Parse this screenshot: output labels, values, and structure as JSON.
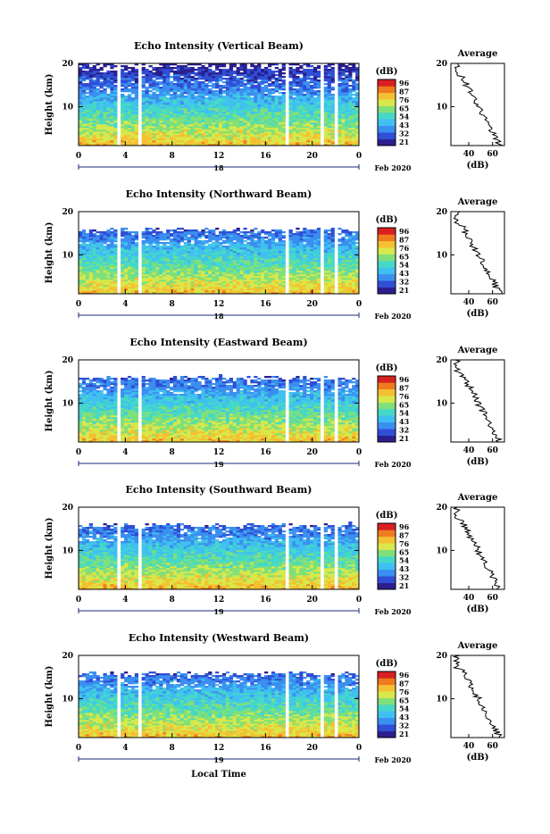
{
  "figure": {
    "xlabel": "Local Time",
    "date_suffix": "Feb 2020"
  },
  "colorbar": {
    "unit": "(dB)",
    "ticks": [
      "96",
      "87",
      "76",
      "65",
      "54",
      "43",
      "32",
      "21"
    ],
    "colors": [
      "#2b1f8f",
      "#2f4fd6",
      "#3b8ff0",
      "#3fc0f0",
      "#45d8c8",
      "#7fe07a",
      "#d8e84a",
      "#f5c030",
      "#f07a20",
      "#d82020"
    ]
  },
  "chart_data": [
    {
      "type": "heatmap",
      "title": "Echo Intensity (Vertical Beam)",
      "xlabel": "",
      "ylabel": "Height (km)",
      "x_ticks": [
        "0",
        "4",
        "8",
        "12",
        "16",
        "20",
        "0"
      ],
      "x_range": [
        0,
        24
      ],
      "y_range": [
        1,
        20
      ],
      "y_ticks": [
        "10",
        "20"
      ],
      "day_label": "18",
      "missing_hours": [
        [
          3.2,
          3.5
        ],
        [
          5.1,
          5.4
        ],
        [
          17.8,
          18.1
        ],
        [
          20.8,
          21.0
        ],
        [
          21.9,
          22.1
        ]
      ],
      "value_unit": "dB",
      "value_range": [
        21,
        96
      ],
      "profile": {
        "title": "Average",
        "xlabel": "(dB)",
        "x_ticks": [
          "40",
          "60"
        ],
        "x_range": [
          25,
          70
        ],
        "y_range": [
          1,
          20
        ],
        "y_ticks": [
          "10",
          "20"
        ]
      }
    },
    {
      "type": "heatmap",
      "title": "Echo Intensity (Northward Beam)",
      "xlabel": "",
      "ylabel": "Height (km)",
      "x_ticks": [
        "0",
        "4",
        "8",
        "12",
        "16",
        "20",
        "0"
      ],
      "x_range": [
        0,
        24
      ],
      "y_range": [
        1,
        20
      ],
      "y_ticks": [
        "10",
        "20"
      ],
      "day_label": "18",
      "missing_hours": [
        [
          3.2,
          3.5
        ],
        [
          5.1,
          5.4
        ],
        [
          17.8,
          18.1
        ],
        [
          20.8,
          21.0
        ],
        [
          21.9,
          22.1
        ]
      ],
      "value_unit": "dB",
      "value_range": [
        21,
        96
      ],
      "profile": {
        "title": "Average",
        "xlabel": "(dB)",
        "x_ticks": [
          "40",
          "60"
        ],
        "x_range": [
          25,
          70
        ],
        "y_range": [
          1,
          20
        ],
        "y_ticks": [
          "10",
          "20"
        ]
      }
    },
    {
      "type": "heatmap",
      "title": "Echo Intensity (Eastward Beam)",
      "xlabel": "",
      "ylabel": "Height (km)",
      "x_ticks": [
        "0",
        "4",
        "8",
        "12",
        "16",
        "20",
        "0"
      ],
      "x_range": [
        0,
        24
      ],
      "y_range": [
        1,
        20
      ],
      "y_ticks": [
        "10",
        "20"
      ],
      "day_label": "19",
      "missing_hours": [
        [
          3.2,
          3.5
        ],
        [
          5.1,
          5.4
        ],
        [
          17.8,
          18.1
        ],
        [
          20.8,
          21.0
        ],
        [
          21.9,
          22.1
        ]
      ],
      "value_unit": "dB",
      "value_range": [
        21,
        96
      ],
      "profile": {
        "title": "Average",
        "xlabel": "(dB)",
        "x_ticks": [
          "40",
          "60"
        ],
        "x_range": [
          25,
          70
        ],
        "y_range": [
          1,
          20
        ],
        "y_ticks": [
          "10",
          "20"
        ]
      }
    },
    {
      "type": "heatmap",
      "title": "Echo Intensity (Southward Beam)",
      "xlabel": "",
      "ylabel": "Height (km)",
      "x_ticks": [
        "0",
        "4",
        "8",
        "12",
        "16",
        "20",
        "0"
      ],
      "x_range": [
        0,
        24
      ],
      "y_range": [
        1,
        20
      ],
      "y_ticks": [
        "10",
        "20"
      ],
      "day_label": "19",
      "missing_hours": [
        [
          3.2,
          3.5
        ],
        [
          5.1,
          5.4
        ],
        [
          17.8,
          18.1
        ],
        [
          20.8,
          21.0
        ],
        [
          21.9,
          22.1
        ]
      ],
      "value_unit": "dB",
      "value_range": [
        21,
        96
      ],
      "profile": {
        "title": "Average",
        "xlabel": "(dB)",
        "x_ticks": [
          "40",
          "60"
        ],
        "x_range": [
          25,
          70
        ],
        "y_range": [
          1,
          20
        ],
        "y_ticks": [
          "10",
          "20"
        ]
      }
    },
    {
      "type": "heatmap",
      "title": "Echo Intensity (Westward Beam)",
      "xlabel": "Local Time",
      "ylabel": "Height (km)",
      "x_ticks": [
        "0",
        "4",
        "8",
        "12",
        "16",
        "20",
        "0"
      ],
      "x_range": [
        0,
        24
      ],
      "y_range": [
        1,
        20
      ],
      "y_ticks": [
        "10",
        "20"
      ],
      "day_label": "19",
      "missing_hours": [
        [
          3.2,
          3.5
        ],
        [
          5.1,
          5.4
        ],
        [
          17.8,
          18.1
        ],
        [
          20.8,
          21.0
        ],
        [
          21.9,
          22.1
        ]
      ],
      "value_unit": "dB",
      "value_range": [
        21,
        96
      ],
      "profile": {
        "title": "Average",
        "xlabel": "(dB)",
        "x_ticks": [
          "40",
          "60"
        ],
        "x_range": [
          25,
          70
        ],
        "y_range": [
          1,
          20
        ],
        "y_ticks": [
          "10",
          "20"
        ]
      }
    }
  ]
}
